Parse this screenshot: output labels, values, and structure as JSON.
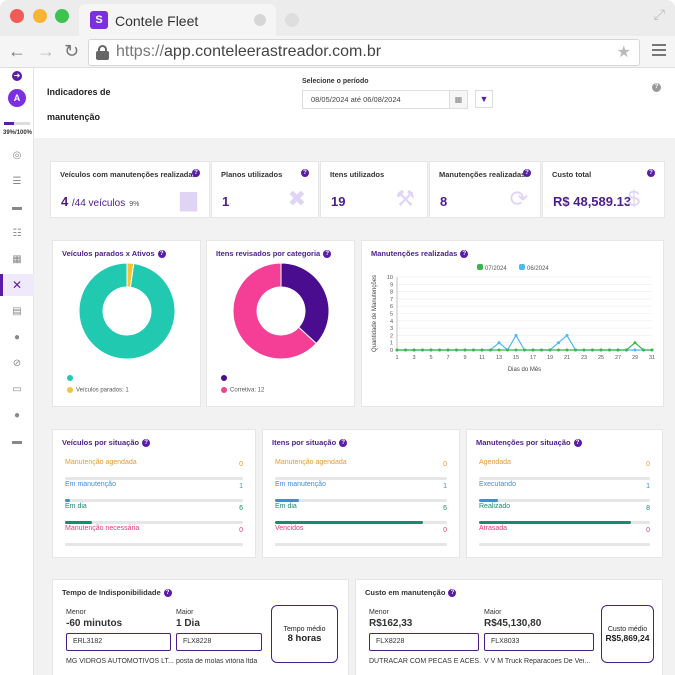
{
  "browser": {
    "tab_title": "Contele Fleet",
    "favicon_text": "S",
    "url_protocol": "https://",
    "url_host": "app.conteleerastreador.com.br"
  },
  "sidebar": {
    "avatar_letter": "A",
    "progress_percent": 39,
    "progress_label": "39%/100%",
    "icons": [
      "globe-icon",
      "list-icon",
      "car-icon",
      "checklist-icon",
      "grid-icon",
      "wrench-icon",
      "document-icon",
      "tire-icon",
      "ban-icon",
      "id-card-icon",
      "user-icon",
      "car-front-icon"
    ]
  },
  "header": {
    "title": "Indicadores de manutenção",
    "period_label": "Selecione o período",
    "date_range": "08/05/2024  até 06/08/2024",
    "help": "?"
  },
  "kpis": [
    {
      "title": "Veículos com manutenções realizadas",
      "value": "4",
      "sub": "/44 veículos",
      "pct": "9%",
      "icon": "car-icon"
    },
    {
      "title": "Planos utilizados",
      "value": "1",
      "sub": "",
      "pct": "",
      "icon": "tools-icon"
    },
    {
      "title": "Itens utilizados",
      "value": "19",
      "sub": "",
      "pct": "",
      "icon": "wrench-icon"
    },
    {
      "title": "Manutenções realizadas",
      "value": "8",
      "sub": "",
      "pct": "",
      "icon": "refresh-icon"
    },
    {
      "title": "Custo total",
      "value": "R$ 48,589.13",
      "sub": "",
      "pct": "",
      "icon": "dollar-icon"
    }
  ],
  "chart_data": [
    {
      "type": "pie",
      "title": "Veículos parados x Ativos",
      "slices": [
        {
          "name": "Veículos parados: 1",
          "value": 1,
          "color": "#f5c23a"
        },
        {
          "name": "",
          "value": 43,
          "color": "#21c9b0"
        }
      ]
    },
    {
      "type": "pie",
      "title": "Itens revisados por categoria",
      "slices": [
        {
          "name": "",
          "value": 7,
          "color": "#4b0d8f"
        },
        {
          "name": "Corretiva: 12",
          "value": 12,
          "color": "#f53f97"
        }
      ]
    },
    {
      "type": "line",
      "title": "Manutenções realizadas",
      "xlabel": "Dias do Mês",
      "ylabel": "Quantidade de Manutenções",
      "ylim": [
        0,
        10
      ],
      "yticks": [
        0,
        1,
        2,
        3,
        4,
        5,
        6,
        7,
        8,
        9,
        10
      ],
      "xticks": [
        1,
        3,
        5,
        7,
        9,
        11,
        13,
        15,
        17,
        19,
        21,
        23,
        25,
        27,
        29,
        31
      ],
      "x": [
        1,
        2,
        3,
        4,
        5,
        6,
        7,
        8,
        9,
        10,
        11,
        12,
        13,
        14,
        15,
        16,
        17,
        18,
        19,
        20,
        21,
        22,
        23,
        24,
        25,
        26,
        27,
        28,
        29,
        30,
        31
      ],
      "series": [
        {
          "name": "07/2024",
          "color": "#3cb54a",
          "values": [
            0,
            0,
            0,
            0,
            0,
            0,
            0,
            0,
            0,
            0,
            0,
            0,
            0,
            0,
            0,
            0,
            0,
            0,
            0,
            0,
            0,
            0,
            0,
            0,
            0,
            0,
            0,
            0,
            1,
            0,
            0
          ]
        },
        {
          "name": "06/2024",
          "color": "#4fb8f0",
          "values": [
            0,
            0,
            0,
            0,
            0,
            0,
            0,
            0,
            0,
            0,
            0,
            0,
            1,
            0,
            2,
            0,
            0,
            0,
            0,
            1,
            2,
            0,
            0,
            0,
            0,
            0,
            0,
            0,
            0,
            0,
            0
          ]
        }
      ]
    }
  ],
  "situations": [
    {
      "title": "Veículos por situação",
      "rows": [
        {
          "label": "Manutenção agendada",
          "value": "0",
          "color": "#e89a2c",
          "fill": 0
        },
        {
          "label": "Em manutenção",
          "value": "1",
          "color": "#3a8fd9",
          "fill": 0.03
        },
        {
          "label": "Em dia",
          "value": "6",
          "color": "#1a8a6e",
          "fill": 0.15
        },
        {
          "label": "Manutenção necessária",
          "value": "0",
          "color": "#e0407b",
          "fill": 0
        }
      ]
    },
    {
      "title": "Itens por situação",
      "rows": [
        {
          "label": "Manutenção agendada",
          "value": "0",
          "color": "#e89a2c",
          "fill": 0
        },
        {
          "label": "Em manutenção",
          "value": "1",
          "color": "#3a8fd9",
          "fill": 0.14
        },
        {
          "label": "Em dia",
          "value": "6",
          "color": "#1a8a6e",
          "fill": 0.86
        },
        {
          "label": "Vencidos",
          "value": "0",
          "color": "#e0407b",
          "fill": 0
        }
      ]
    },
    {
      "title": "Manutenções por situação",
      "rows": [
        {
          "label": "Agendada",
          "value": "0",
          "color": "#e89a2c",
          "fill": 0
        },
        {
          "label": "Executando",
          "value": "1",
          "color": "#3a8fd9",
          "fill": 0.11
        },
        {
          "label": "Realizado",
          "value": "8",
          "color": "#1a8a6e",
          "fill": 0.89
        },
        {
          "label": "Atrasada",
          "value": "0",
          "color": "#e0407b",
          "fill": 0
        }
      ]
    }
  ],
  "downtime": {
    "title": "Tempo de Indisponibilidade",
    "min_label": "Menor",
    "min_value": "-60 minutos",
    "min_plate": "ERL3182",
    "min_company": "MG VIDROS AUTOMOTIVOS LT...",
    "max_label": "Maior",
    "max_value": "1 Dia",
    "max_plate": "FLX8228",
    "max_company": "posta de molas vitória ltda",
    "avg_label": "Tempo médio",
    "avg_value": "8 horas"
  },
  "cost": {
    "title": "Custo em manutenção",
    "min_label": "Menor",
    "min_value": "R$162,33",
    "min_plate": "FLX8228",
    "min_company": "DUTRACAR COM PECAS E ACES...",
    "max_label": "Maior",
    "max_value": "R$45,130,80",
    "max_plate": "FLX8033",
    "max_company": "V V M Truck Reparacoes De Vei...",
    "avg_label": "Custo médio",
    "avg_value": "R$5,869,24"
  }
}
